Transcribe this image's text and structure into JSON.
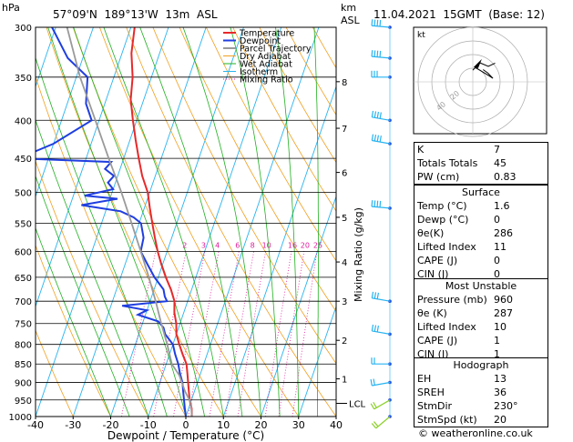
{
  "header": {
    "hpa_label": "hPa",
    "location": "57°09'N  189°13'W  13m  ASL",
    "km_label": "km",
    "asl_label": "ASL",
    "datetime": "11.04.2021  15GMT  (Base: 12)"
  },
  "legend": [
    {
      "label": "Temperature",
      "color": "#e8282a"
    },
    {
      "label": "Dewpoint",
      "color": "#1f3ee0"
    },
    {
      "label": "Parcel Trajectory",
      "color": "#9a9a9a"
    },
    {
      "label": "Dry Adiabat",
      "color": "#f0a020"
    },
    {
      "label": "Wet Adiabat",
      "color": "#20b020"
    },
    {
      "label": "Isotherm",
      "color": "#28b4f0"
    },
    {
      "label": "Mixing Ratio",
      "color": "#e01e9e"
    }
  ],
  "chart_data": {
    "type": "line",
    "xlabel": "Dewpoint / Temperature (°C)",
    "ylabel": "hPa",
    "x_ticks": [
      -40,
      -30,
      -20,
      -10,
      0,
      10,
      20,
      30,
      40
    ],
    "pressure_ticks": [
      300,
      350,
      400,
      450,
      500,
      550,
      600,
      650,
      700,
      750,
      800,
      850,
      900,
      950,
      1000
    ],
    "km_ticks": [
      {
        "km": "1",
        "p": 890
      },
      {
        "km": "2",
        "p": 790
      },
      {
        "km": "3",
        "p": 700
      },
      {
        "km": "4",
        "p": 620
      },
      {
        "km": "5",
        "p": 540
      },
      {
        "km": "6",
        "p": 470
      },
      {
        "km": "7",
        "p": 410
      },
      {
        "km": "8",
        "p": 355
      }
    ],
    "lcl": {
      "label": "LCL",
      "p": 960
    },
    "mixing_ratio_axis_label": "Mixing Ratio (g/kg)",
    "mixing_ratio_labels": [
      "2",
      "3",
      "4",
      "6",
      "8",
      "10",
      "16",
      "20",
      "25"
    ],
    "series": [
      {
        "name": "Temperature",
        "color": "#e8282a",
        "points": [
          [
            1.6,
            1000
          ],
          [
            0.8,
            975
          ],
          [
            -0.5,
            950
          ],
          [
            -1.5,
            925
          ],
          [
            -2.5,
            900
          ],
          [
            -3.5,
            875
          ],
          [
            -4.6,
            850
          ],
          [
            -6.5,
            825
          ],
          [
            -8.3,
            800
          ],
          [
            -10,
            775
          ],
          [
            -11,
            750
          ],
          [
            -12.5,
            725
          ],
          [
            -13.5,
            700
          ],
          [
            -15.5,
            675
          ],
          [
            -18,
            650
          ],
          [
            -20.3,
            625
          ],
          [
            -22.5,
            600
          ],
          [
            -24.5,
            575
          ],
          [
            -26.5,
            550
          ],
          [
            -28.5,
            525
          ],
          [
            -30.5,
            500
          ],
          [
            -33.5,
            475
          ],
          [
            -36,
            450
          ],
          [
            -38.5,
            425
          ],
          [
            -41,
            400
          ],
          [
            -43.5,
            375
          ],
          [
            -45,
            350
          ],
          [
            -47.5,
            325
          ],
          [
            -49,
            300
          ]
        ]
      },
      {
        "name": "Dewpoint",
        "color": "#1f3ee0",
        "points": [
          [
            0,
            1000
          ],
          [
            -1,
            975
          ],
          [
            -2,
            950
          ],
          [
            -3,
            925
          ],
          [
            -4,
            900
          ],
          [
            -5.5,
            875
          ],
          [
            -6.8,
            850
          ],
          [
            -8.5,
            825
          ],
          [
            -10,
            800
          ],
          [
            -13,
            775
          ],
          [
            -14,
            760
          ],
          [
            -16,
            745
          ],
          [
            -22,
            730
          ],
          [
            -20,
            720
          ],
          [
            -27,
            710
          ],
          [
            -15.5,
            700
          ],
          [
            -16.5,
            690
          ],
          [
            -17.5,
            675
          ],
          [
            -21,
            650
          ],
          [
            -24,
            625
          ],
          [
            -27,
            600
          ],
          [
            -27.5,
            575
          ],
          [
            -29.5,
            550
          ],
          [
            -32,
            540
          ],
          [
            -36,
            530
          ],
          [
            -47,
            520
          ],
          [
            -38,
            510
          ],
          [
            -47,
            505
          ],
          [
            -40,
            495
          ],
          [
            -42,
            485
          ],
          [
            -41,
            475
          ],
          [
            -44,
            465
          ],
          [
            -43,
            455
          ],
          [
            -68,
            450
          ],
          [
            -60,
            430
          ],
          [
            -52,
            400
          ],
          [
            -55,
            380
          ],
          [
            -57,
            350
          ],
          [
            -64,
            330
          ],
          [
            -71,
            300
          ]
        ]
      },
      {
        "name": "Parcel Trajectory",
        "color": "#9a9a9a",
        "points": [
          [
            1.6,
            1000
          ],
          [
            0.2,
            960
          ],
          [
            -2.5,
            925
          ],
          [
            -5.5,
            880
          ],
          [
            -8.5,
            850
          ],
          [
            -11.5,
            800
          ],
          [
            -15,
            750
          ],
          [
            -18.5,
            700
          ],
          [
            -22.5,
            650
          ],
          [
            -27,
            600
          ],
          [
            -32,
            550
          ],
          [
            -37.5,
            500
          ],
          [
            -44,
            450
          ],
          [
            -51,
            400
          ],
          [
            -59,
            350
          ],
          [
            -67,
            300
          ]
        ]
      }
    ],
    "wind_barbs": [
      {
        "p": 1000,
        "dir": 230,
        "spd": 20
      },
      {
        "p": 950,
        "dir": 240,
        "spd": 20
      },
      {
        "p": 900,
        "dir": 260,
        "spd": 20
      },
      {
        "p": 850,
        "dir": 270,
        "spd": 20
      },
      {
        "p": 775,
        "dir": 280,
        "spd": 25
      },
      {
        "p": 700,
        "dir": 280,
        "spd": 30
      },
      {
        "p": 525,
        "dir": 275,
        "spd": 35
      },
      {
        "p": 430,
        "dir": 280,
        "spd": 35
      },
      {
        "p": 400,
        "dir": 280,
        "spd": 35
      },
      {
        "p": 350,
        "dir": 270,
        "spd": 30
      },
      {
        "p": 330,
        "dir": 275,
        "spd": 35
      },
      {
        "p": 300,
        "dir": 275,
        "spd": 40
      }
    ]
  },
  "hodograph": {
    "label": "kt",
    "ring_labels": [
      "20",
      "40"
    ],
    "path": [
      [
        230,
        20
      ],
      [
        225,
        15
      ],
      [
        200,
        14
      ],
      [
        180,
        8
      ],
      [
        190,
        10
      ],
      [
        250,
        12
      ],
      [
        260,
        14
      ],
      [
        240,
        12
      ],
      [
        220,
        11
      ]
    ],
    "arrow": {
      "dir": 230,
      "spd": 20
    }
  },
  "indices": {
    "rows": [
      {
        "label": "K",
        "value": "7"
      },
      {
        "label": "Totals Totals",
        "value": "45"
      },
      {
        "label": "PW (cm)",
        "value": "0.83"
      }
    ]
  },
  "surface": {
    "title": "Surface",
    "rows": [
      {
        "label": "Temp (°C)",
        "value": "1.6"
      },
      {
        "label": "Dewp (°C)",
        "value": "0"
      },
      {
        "label": "θe(K)",
        "value": "286"
      },
      {
        "label": "Lifted Index",
        "value": "11"
      },
      {
        "label": "CAPE (J)",
        "value": "0"
      },
      {
        "label": "CIN (J)",
        "value": "0"
      }
    ]
  },
  "most_unstable": {
    "title": "Most Unstable",
    "rows": [
      {
        "label": "Pressure (mb)",
        "value": "960"
      },
      {
        "label": "θe (K)",
        "value": "287"
      },
      {
        "label": "Lifted Index",
        "value": "10"
      },
      {
        "label": "CAPE (J)",
        "value": "1"
      },
      {
        "label": "CIN (J)",
        "value": "1"
      }
    ]
  },
  "hodograph_table": {
    "title": "Hodograph",
    "rows": [
      {
        "label": "EH",
        "value": "13"
      },
      {
        "label": "SREH",
        "value": "36"
      },
      {
        "label": "StmDir",
        "value": "230°"
      },
      {
        "label": "StmSpd (kt)",
        "value": "20"
      }
    ]
  },
  "footer": {
    "copyright": "© weatheronline.co.uk"
  }
}
